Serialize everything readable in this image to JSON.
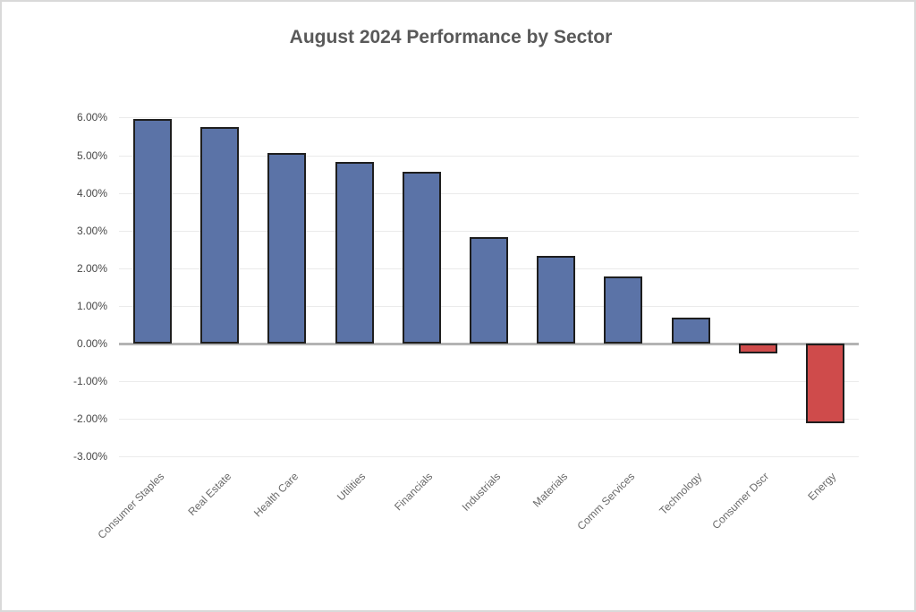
{
  "chart_data": {
    "type": "bar",
    "title": "August 2024 Performance by Sector",
    "categories": [
      "Consumer Staples",
      "Real Estate",
      "Health Care",
      "Utilities",
      "Financials",
      "Industrials",
      "Materials",
      "Comm Services",
      "Technology",
      "Consumer Dscr",
      "Energy"
    ],
    "values": [
      5.97,
      5.76,
      5.07,
      4.81,
      4.57,
      2.82,
      2.32,
      1.77,
      0.68,
      -0.27,
      -2.11
    ],
    "unit": "%",
    "xlabel": "",
    "ylabel": "",
    "ylim": [
      -3,
      6
    ],
    "y_ticks": [
      {
        "value": 6,
        "label": "6.00%"
      },
      {
        "value": 5,
        "label": "5.00%"
      },
      {
        "value": 4,
        "label": "4.00%"
      },
      {
        "value": 3,
        "label": "3.00%"
      },
      {
        "value": 2,
        "label": "2.00%"
      },
      {
        "value": 1,
        "label": "1.00%"
      },
      {
        "value": 0,
        "label": "0.00%"
      },
      {
        "value": -1,
        "label": "-1.00%"
      },
      {
        "value": -2,
        "label": "-2.00%"
      },
      {
        "value": -3,
        "label": "-3.00%"
      }
    ],
    "grid": true,
    "legend": "none",
    "colors": {
      "positive_bar": "#5b73a7",
      "negative_bar": "#cf4b4b",
      "bar_border": "#1e1e1e",
      "gridline": "#ebebeb",
      "zero_line": "#b3b3b3",
      "title_text": "#595959",
      "tick_text": "#474747",
      "category_text": "#6a6a6a"
    }
  }
}
